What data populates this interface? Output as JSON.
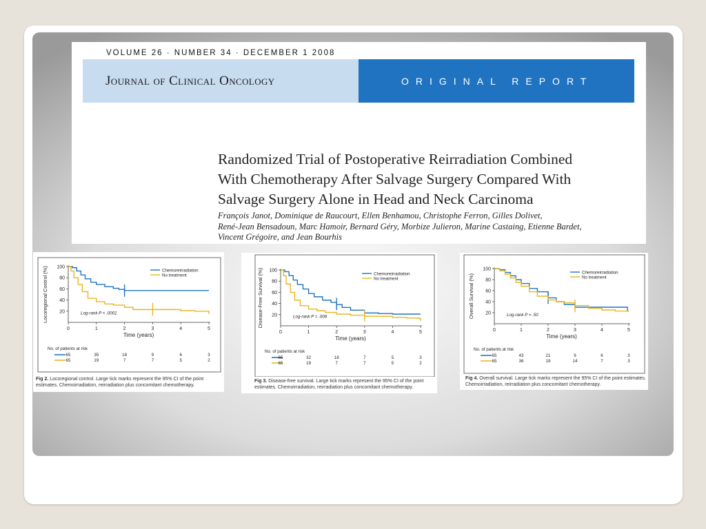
{
  "header": {
    "volume_line": "VOLUME 26 · NUMBER 34 · DECEMBER 1 2008",
    "journal": "Journal of Clinical Oncology",
    "section": "ORIGINAL REPORT"
  },
  "article": {
    "title_lines": [
      "Randomized Trial of Postoperative Reirradiation Combined",
      "With Chemotherapy After Salvage Surgery Compared With",
      "Salvage Surgery Alone in Head and Neck Carcinoma"
    ],
    "author_lines": [
      "François Janot, Dominique de Raucourt, Ellen Benhamou, Christophe Ferron, Gilles Dolivet,",
      "René-Jean Bensadoun, Marc Hamoir, Bernard Géry, Morbize Julieron, Marine Castaing, Etienne Bardet,",
      "Vincent Grégoire, and Jean Bourhis"
    ]
  },
  "colors": {
    "chemo": "#1f73c0",
    "no_treatment": "#e8b520",
    "journal_band": "#c8dcf0",
    "report_band": "#1f73c0"
  },
  "chart_data": [
    {
      "type": "line",
      "figure_label": "Fig 2.",
      "caption": "Locoregional control. Large tick marks represent the 95% CI of the point estimates. Chemoirradiation, reirradiation plus concomitant chemotherapy.",
      "ylabel": "Locoregional Control (%)",
      "xlabel": "Time (years)",
      "xlim": [
        0,
        5
      ],
      "ylim": [
        0,
        100
      ],
      "x_ticks": [
        0,
        1,
        2,
        3,
        4,
        5
      ],
      "y_ticks": [
        20,
        40,
        60,
        80,
        100
      ],
      "legend": [
        "Chemoreirradiation",
        "No treatment"
      ],
      "annotation": "Log-rank P < .0001",
      "series": [
        {
          "name": "Chemoreirradiation",
          "color": "#1f73c0",
          "x": [
            0,
            0.15,
            0.3,
            0.45,
            0.6,
            0.8,
            1.0,
            1.3,
            1.6,
            1.8,
            2.0,
            2.5,
            3.0,
            4.0,
            5.0
          ],
          "y": [
            100,
            98,
            92,
            85,
            78,
            72,
            68,
            64,
            61,
            59,
            57,
            57,
            57,
            57,
            57
          ],
          "ci": [
            {
              "x": 2.0,
              "low": 46,
              "high": 68
            }
          ]
        },
        {
          "name": "No treatment",
          "color": "#e8b520",
          "x": [
            0,
            0.1,
            0.2,
            0.35,
            0.5,
            0.7,
            1.0,
            1.3,
            1.6,
            2.0,
            2.3,
            3.0,
            4.0,
            4.5,
            4.95,
            5.0
          ],
          "y": [
            100,
            92,
            80,
            68,
            55,
            43,
            37,
            33,
            31,
            27,
            23,
            23,
            21,
            20,
            20,
            15
          ],
          "ci": [
            {
              "x": 3.0,
              "low": 12,
              "high": 35
            }
          ]
        }
      ],
      "at_risk_title": "No. of patients at risk",
      "at_risk": [
        {
          "series": "Chemoreirradiation",
          "n": "65",
          "counts": [
            "35",
            "18",
            "9",
            "6",
            "3"
          ]
        },
        {
          "series": "No treatment",
          "n": "65",
          "counts": [
            "19",
            "7",
            "7",
            "5",
            "2"
          ]
        }
      ]
    },
    {
      "type": "line",
      "figure_label": "Fig 3.",
      "caption": "Disease-free survival. Large tick marks represent the 95% CI of the point estimates. Chemoirradiation, reirradiation plus concomitant chemotherapy.",
      "ylabel": "Disease-Free Survival (%)",
      "xlabel": "Time (years)",
      "xlim": [
        0,
        5
      ],
      "ylim": [
        0,
        100
      ],
      "x_ticks": [
        0,
        1,
        2,
        3,
        4,
        5
      ],
      "y_ticks": [
        20,
        40,
        60,
        80,
        100
      ],
      "legend": [
        "Chemoreirradiation",
        "No treatment"
      ],
      "annotation": "Log-rank P = .006",
      "series": [
        {
          "name": "Chemoreirradiation",
          "color": "#1f73c0",
          "x": [
            0,
            0.15,
            0.3,
            0.45,
            0.6,
            0.8,
            1.0,
            1.2,
            1.5,
            1.8,
            2.0,
            2.2,
            2.5,
            3.0,
            3.5,
            4.0,
            5.0
          ],
          "y": [
            100,
            97,
            90,
            82,
            74,
            66,
            58,
            52,
            46,
            42,
            38,
            33,
            28,
            23,
            22,
            21,
            21
          ],
          "ci": [
            {
              "x": 2.0,
              "low": 28,
              "high": 50
            }
          ]
        },
        {
          "name": "No treatment",
          "color": "#e8b520",
          "x": [
            0,
            0.1,
            0.2,
            0.35,
            0.5,
            0.7,
            1.0,
            1.3,
            1.6,
            2.0,
            2.5,
            3.0,
            3.5,
            4.0,
            4.5,
            4.95,
            5.0
          ],
          "y": [
            100,
            90,
            75,
            60,
            46,
            36,
            30,
            27,
            24,
            21,
            19,
            17,
            17,
            15,
            14,
            13,
            9
          ],
          "ci": [
            {
              "x": 3.0,
              "low": 8,
              "high": 28
            }
          ]
        }
      ],
      "at_risk_title": "No. of patients at risk",
      "at_risk": [
        {
          "series": "Chemoreirradiation",
          "n": "65",
          "counts": [
            "32",
            "18",
            "7",
            "5",
            "3"
          ]
        },
        {
          "series": "No treatment",
          "n": "65",
          "counts": [
            "19",
            "7",
            "7",
            "5",
            "2"
          ]
        }
      ]
    },
    {
      "type": "line",
      "figure_label": "Fig 4.",
      "caption": "Overall survival. Large tick marks represent the 95% CI of the point estimates. Chemoirradiation, reirradiation plus concomitant chemotherapy.",
      "ylabel": "Overall Survival (%)",
      "xlabel": "Time (years)",
      "xlim": [
        0,
        5
      ],
      "ylim": [
        0,
        100
      ],
      "x_ticks": [
        0,
        1,
        2,
        3,
        4,
        5
      ],
      "y_ticks": [
        20,
        40,
        60,
        80,
        100
      ],
      "legend": [
        "Chemoreirradiation",
        "No treatment"
      ],
      "annotation": "Log-rank P = .50",
      "series": [
        {
          "name": "Chemoreirradiation",
          "color": "#1f73c0",
          "x": [
            0,
            0.2,
            0.4,
            0.6,
            0.8,
            1.0,
            1.3,
            1.6,
            2.0,
            2.3,
            2.6,
            3.0,
            3.5,
            4.0,
            4.5,
            4.95,
            5.0
          ],
          "y": [
            100,
            98,
            93,
            87,
            80,
            73,
            64,
            58,
            47,
            40,
            35,
            30,
            30,
            30,
            30,
            23,
            23
          ],
          "ci": [
            {
              "x": 2.0,
              "low": 36,
              "high": 58
            }
          ]
        },
        {
          "name": "No treatment",
          "color": "#e8b520",
          "x": [
            0,
            0.2,
            0.4,
            0.6,
            0.8,
            1.0,
            1.3,
            1.6,
            2.0,
            2.3,
            2.6,
            3.0,
            3.5,
            4.0,
            4.5,
            4.95,
            5.0
          ],
          "y": [
            100,
            96,
            90,
            83,
            75,
            68,
            58,
            50,
            43,
            40,
            38,
            33,
            28,
            25,
            23,
            23,
            23
          ],
          "ci": [
            {
              "x": 3.0,
              "low": 21,
              "high": 44
            }
          ]
        }
      ],
      "at_risk_title": "No. of patients at risk",
      "at_risk": [
        {
          "series": "Chemoreirradiation",
          "n": "65",
          "counts": [
            "43",
            "21",
            "9",
            "6",
            "3"
          ]
        },
        {
          "series": "No treatment",
          "n": "65",
          "counts": [
            "36",
            "19",
            "14",
            "7",
            "3"
          ]
        }
      ]
    }
  ]
}
